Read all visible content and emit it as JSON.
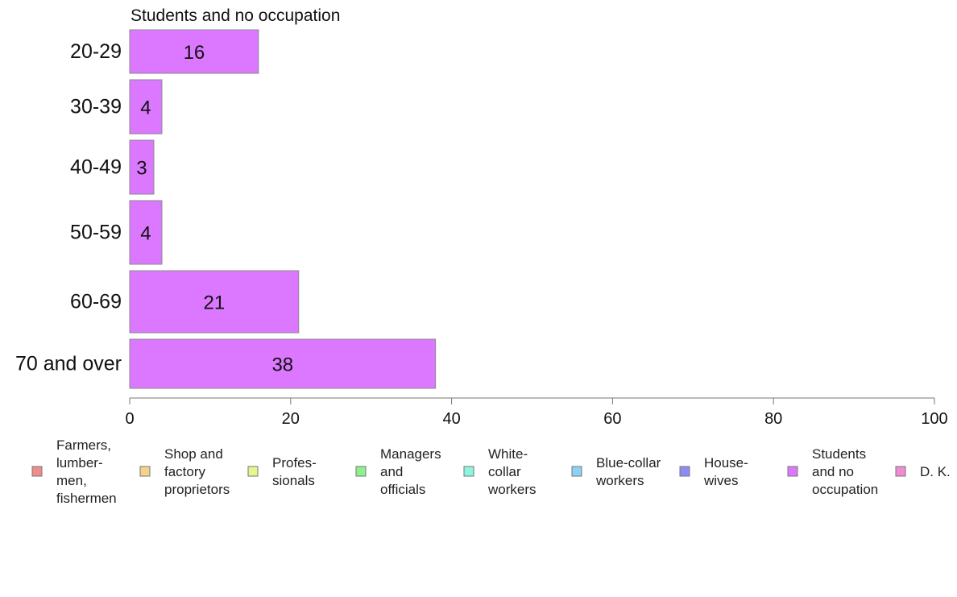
{
  "chart_data": {
    "type": "bar",
    "orientation": "horizontal",
    "title": "Students and no occupation",
    "xlabel": "",
    "ylabel": "",
    "categories": [
      "20-29",
      "30-39",
      "40-49",
      "50-59",
      "60-69",
      "70 and over"
    ],
    "series": [
      {
        "name": "Students and no occupation",
        "values": [
          16,
          4,
          3,
          4,
          21,
          38
        ],
        "color": "#dc78ff"
      }
    ],
    "value_labels": [
      "16",
      "4",
      "3",
      "4",
      "21",
      "38"
    ],
    "xlim": [
      0,
      100
    ],
    "xticks": [
      0,
      20,
      40,
      60,
      80,
      100
    ],
    "xtick_labels": [
      "0",
      "20",
      "40",
      "60",
      "80",
      "100"
    ],
    "grid": false,
    "legend": {
      "placement": "bottom",
      "items": [
        {
          "lines": [
            "Farmers,",
            "lumber-",
            "men,",
            "fishermen"
          ],
          "color": "#f08c8c"
        },
        {
          "lines": [
            "Shop and",
            "factory",
            "proprietors"
          ],
          "color": "#f5d28c"
        },
        {
          "lines": [
            "Profes-",
            "sionals"
          ],
          "color": "#e6f58c"
        },
        {
          "lines": [
            "Managers",
            "and",
            "officials"
          ],
          "color": "#8cf08c"
        },
        {
          "lines": [
            "White-",
            "collar",
            "workers"
          ],
          "color": "#8cf5dc"
        },
        {
          "lines": [
            "Blue-collar",
            "workers"
          ],
          "color": "#8cd2f5"
        },
        {
          "lines": [
            "House-",
            "wives"
          ],
          "color": "#8c8cf5"
        },
        {
          "lines": [
            "Students",
            "and no",
            "occupation"
          ],
          "color": "#dc78ff"
        },
        {
          "lines": [
            "D. K."
          ],
          "color": "#f08cd2"
        }
      ]
    }
  }
}
